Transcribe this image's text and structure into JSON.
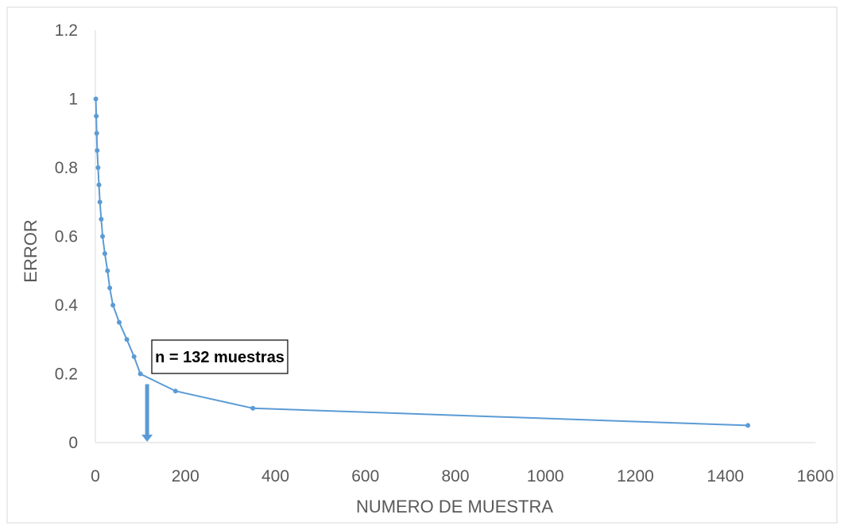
{
  "chart_data": {
    "type": "line",
    "title": "",
    "xlabel": "NUMERO DE  MUESTRA",
    "ylabel": "ERROR",
    "xlim": [
      0,
      1600
    ],
    "ylim": [
      0,
      1.2
    ],
    "x_ticks": [
      "0",
      "200",
      "400",
      "600",
      "800",
      "1000",
      "1200",
      "1400",
      "1600"
    ],
    "y_ticks": [
      "0",
      "0.2",
      "0.4",
      "0.6",
      "0.8",
      "1",
      "1.2"
    ],
    "grid": false,
    "legend": "none",
    "series": [
      {
        "color": "#5b9bd5",
        "x": [
          1,
          2,
          3,
          4,
          6,
          8,
          10,
          13,
          16,
          21,
          27,
          32,
          39,
          53,
          70,
          86,
          100,
          178,
          350,
          1450
        ],
        "y": [
          1.0,
          0.95,
          0.9,
          0.85,
          0.8,
          0.75,
          0.7,
          0.65,
          0.6,
          0.55,
          0.5,
          0.45,
          0.4,
          0.35,
          0.3,
          0.25,
          0.2,
          0.15,
          0.1,
          0.05
        ]
      }
    ],
    "annotation": {
      "text": "n = 132 muestras",
      "arrow_x": 115,
      "arrow_y_top": 0.17,
      "arrow_y_bottom": 0.0,
      "arrow_color": "#5b9bd5"
    }
  }
}
